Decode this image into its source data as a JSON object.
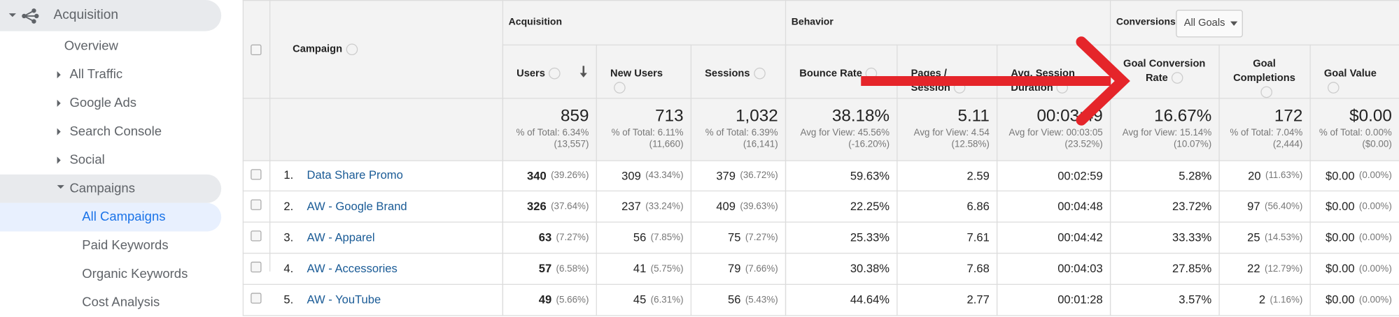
{
  "sidebar": {
    "title": "Acquisition",
    "items": [
      "Overview",
      "All Traffic",
      "Google Ads",
      "Search Console",
      "Social",
      "Campaigns",
      "All Campaigns",
      "Paid Keywords",
      "Organic Keywords",
      "Cost Analysis"
    ]
  },
  "table": {
    "groups": [
      "Acquisition",
      "Behavior",
      "Conversions"
    ],
    "goal_select": "All Goals",
    "columns": [
      "Campaign",
      "Users",
      "New Users",
      "Sessions",
      "Bounce Rate",
      "Pages / Session",
      "Avg. Session Duration",
      "Goal Conversion Rate",
      "Goal Completions",
      "Goal Value"
    ],
    "totals": [
      [
        "859",
        "% of Total: 6.34%",
        "(13,557)"
      ],
      [
        "713",
        "% of Total: 6.11%",
        "(11,660)"
      ],
      [
        "1,032",
        "% of Total: 6.39%",
        "(16,141)"
      ],
      [
        "38.18%",
        "Avg for View: 45.56%",
        "(-16.20%)"
      ],
      [
        "5.11",
        "Avg for View: 4.54",
        "(12.58%)"
      ],
      [
        "00:03:49",
        "Avg for View: 00:03:05",
        "(23.52%)"
      ],
      [
        "16.67%",
        "Avg for View: 15.14%",
        "(10.07%)"
      ],
      [
        "172",
        "% of Total: 7.04%",
        "(2,444)"
      ],
      [
        "$0.00",
        "% of Total: 0.00%",
        "($0.00)"
      ]
    ],
    "rows": [
      {
        "index": "1.",
        "name": "Data Share Promo",
        "cells": [
          [
            "340",
            "(39.26%)"
          ],
          [
            "309",
            "(43.34%)"
          ],
          [
            "379",
            "(36.72%)"
          ],
          [
            "59.63%"
          ],
          [
            "2.59"
          ],
          [
            "00:02:59"
          ],
          [
            "5.28%"
          ],
          [
            "20",
            "(11.63%)"
          ],
          [
            "$0.00",
            "(0.00%)"
          ]
        ]
      },
      {
        "index": "2.",
        "name": "AW - Google Brand",
        "cells": [
          [
            "326",
            "(37.64%)"
          ],
          [
            "237",
            "(33.24%)"
          ],
          [
            "409",
            "(39.63%)"
          ],
          [
            "22.25%"
          ],
          [
            "6.86"
          ],
          [
            "00:04:48"
          ],
          [
            "23.72%"
          ],
          [
            "97",
            "(56.40%)"
          ],
          [
            "$0.00",
            "(0.00%)"
          ]
        ]
      },
      {
        "index": "3.",
        "name": "AW - Apparel",
        "cells": [
          [
            "63",
            "(7.27%)"
          ],
          [
            "56",
            "(7.85%)"
          ],
          [
            "75",
            "(7.27%)"
          ],
          [
            "25.33%"
          ],
          [
            "7.61"
          ],
          [
            "00:04:42"
          ],
          [
            "33.33%"
          ],
          [
            "25",
            "(14.53%)"
          ],
          [
            "$0.00",
            "(0.00%)"
          ]
        ]
      },
      {
        "index": "4.",
        "name": "AW - Accessories",
        "cells": [
          [
            "57",
            "(6.58%)"
          ],
          [
            "41",
            "(5.75%)"
          ],
          [
            "79",
            "(7.66%)"
          ],
          [
            "30.38%"
          ],
          [
            "7.68"
          ],
          [
            "00:04:03"
          ],
          [
            "27.85%"
          ],
          [
            "22",
            "(12.79%)"
          ],
          [
            "$0.00",
            "(0.00%)"
          ]
        ]
      },
      {
        "index": "5.",
        "name": "AW - YouTube",
        "cells": [
          [
            "49",
            "(5.66%)"
          ],
          [
            "45",
            "(6.31%)"
          ],
          [
            "56",
            "(5.43%)"
          ],
          [
            "44.64%"
          ],
          [
            "2.77"
          ],
          [
            "00:01:28"
          ],
          [
            "3.57%"
          ],
          [
            "2",
            "(1.16%)"
          ],
          [
            "$0.00",
            "(0.00%)"
          ]
        ]
      }
    ]
  }
}
